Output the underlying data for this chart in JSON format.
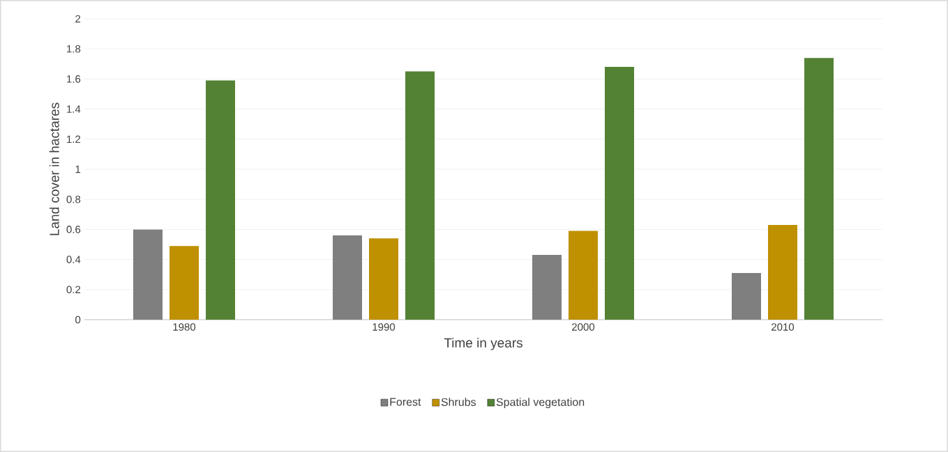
{
  "chart_data": {
    "type": "bar",
    "xlabel": "Time in years",
    "ylabel": "Land cover in hactares",
    "categories": [
      "1980",
      "1990",
      "2000",
      "2010"
    ],
    "series": [
      {
        "name": "Forest",
        "color": "#7f7f7f",
        "values": [
          0.6,
          0.56,
          0.43,
          0.31
        ]
      },
      {
        "name": "Shrubs",
        "color": "#bf9000",
        "values": [
          0.49,
          0.54,
          0.59,
          0.63
        ]
      },
      {
        "name": "Spatial vegetation",
        "color": "#548235",
        "values": [
          1.59,
          1.65,
          1.68,
          1.74
        ]
      }
    ],
    "ylim": [
      0,
      2
    ],
    "yticks": [
      0,
      0.2,
      0.4,
      0.6,
      0.8,
      1,
      1.2,
      1.4,
      1.6,
      1.8,
      2
    ],
    "grid": "y",
    "legend": "bottom"
  }
}
